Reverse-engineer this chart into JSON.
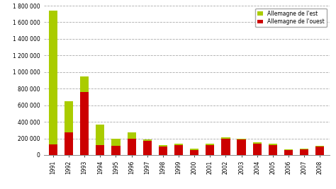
{
  "years": [
    "1991",
    "1992",
    "1993",
    "1994",
    "1995",
    "1996",
    "1997",
    "1998",
    "1999",
    "2000",
    "2001",
    "2002",
    "2003",
    "2004",
    "2005",
    "2006",
    "2007",
    "2008"
  ],
  "west": [
    130000,
    270000,
    760000,
    120000,
    110000,
    200000,
    170000,
    100000,
    120000,
    60000,
    120000,
    200000,
    185000,
    140000,
    120000,
    60000,
    65000,
    100000
  ],
  "east": [
    1610000,
    380000,
    185000,
    250000,
    90000,
    75000,
    15000,
    20000,
    20000,
    15000,
    15000,
    10000,
    10000,
    15000,
    20000,
    10000,
    10000,
    10000
  ],
  "color_west": "#cc0000",
  "color_east": "#aacc00",
  "legend_east": "Allemagne de l'est",
  "legend_west": "Allemagne de l'ouest",
  "ylim": [
    0,
    1800000
  ],
  "yticks": [
    0,
    200000,
    400000,
    600000,
    800000,
    1000000,
    1200000,
    1400000,
    1600000,
    1800000
  ],
  "ytick_labels": [
    "0",
    "200 000",
    "400 000",
    "600 000",
    "800 000",
    "1 000 000",
    "1 200 000",
    "1 400 000",
    "1 600 000",
    "1 800 000"
  ],
  "background_color": "#ffffff",
  "grid_color": "#aaaaaa",
  "font_size": 5.5,
  "bar_width": 0.55
}
